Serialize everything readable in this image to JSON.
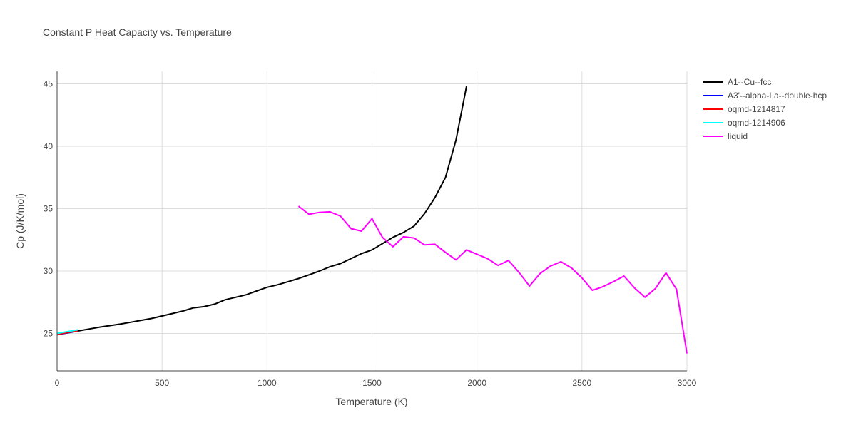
{
  "chart_data": {
    "type": "line",
    "title": "Constant P Heat Capacity vs. Temperature",
    "xlabel": "Temperature (K)",
    "ylabel": "Cp (J/K/mol)",
    "xlim": [
      0,
      3000
    ],
    "ylim": [
      22,
      46
    ],
    "xticks": [
      0,
      500,
      1000,
      1500,
      2000,
      2500,
      3000
    ],
    "yticks": [
      25,
      30,
      35,
      40,
      45
    ],
    "grid": true,
    "legend_position": "right",
    "series": [
      {
        "name": "A1--Cu--fcc",
        "color": "#000000",
        "x": [
          0,
          100,
          200,
          300,
          350,
          400,
          450,
          500,
          550,
          600,
          650,
          700,
          750,
          800,
          850,
          900,
          950,
          1000,
          1050,
          1100,
          1150,
          1200,
          1250,
          1300,
          1350,
          1400,
          1450,
          1500,
          1550,
          1600,
          1650,
          1700,
          1750,
          1800,
          1850,
          1900,
          1950
        ],
        "y": [
          24.9,
          25.2,
          25.5,
          25.75,
          25.9,
          26.05,
          26.2,
          26.4,
          26.6,
          26.8,
          27.05,
          27.15,
          27.35,
          27.7,
          27.9,
          28.1,
          28.4,
          28.7,
          28.9,
          29.15,
          29.4,
          29.7,
          30.0,
          30.35,
          30.6,
          31.0,
          31.4,
          31.7,
          32.2,
          32.7,
          33.1,
          33.6,
          34.6,
          35.9,
          37.5,
          40.5,
          44.8
        ]
      },
      {
        "name": "A3'--alpha-La--double-hcp",
        "color": "#0000ff",
        "x": [
          0,
          100
        ],
        "y": [
          24.9,
          25.2
        ]
      },
      {
        "name": "oqmd-1214817",
        "color": "#ff0000",
        "x": [
          0,
          100
        ],
        "y": [
          24.92,
          25.22
        ]
      },
      {
        "name": "oqmd-1214906",
        "color": "#00ffff",
        "x": [
          0,
          100
        ],
        "y": [
          25.0,
          25.3
        ]
      },
      {
        "name": "liquid",
        "color": "#ff00ff",
        "x": [
          1150,
          1200,
          1250,
          1300,
          1350,
          1400,
          1450,
          1500,
          1550,
          1600,
          1650,
          1700,
          1750,
          1800,
          1850,
          1900,
          1950,
          2000,
          2050,
          2100,
          2150,
          2200,
          2250,
          2300,
          2350,
          2400,
          2450,
          2500,
          2550,
          2600,
          2650,
          2700,
          2750,
          2800,
          2850,
          2900,
          2950,
          3000
        ],
        "y": [
          35.2,
          34.55,
          34.7,
          34.75,
          34.4,
          33.4,
          33.2,
          34.2,
          32.7,
          31.95,
          32.75,
          32.65,
          32.1,
          32.15,
          31.5,
          30.9,
          31.7,
          31.35,
          31.0,
          30.45,
          30.85,
          29.9,
          28.8,
          29.8,
          30.4,
          30.75,
          30.25,
          29.45,
          28.45,
          28.75,
          29.15,
          29.6,
          28.65,
          27.9,
          28.6,
          29.85,
          28.55,
          23.4
        ]
      }
    ]
  }
}
